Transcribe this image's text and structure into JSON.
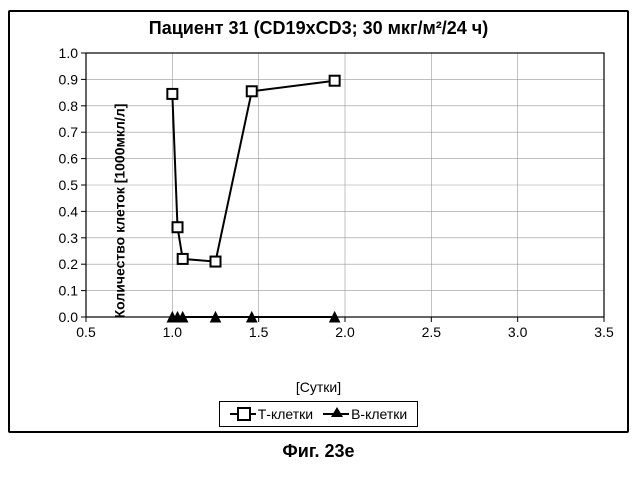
{
  "title": "Пациент 31 (CD19xCD3; 30 мкг/м²/24 ч)",
  "ylabel": "Количество клеток [1000мкл/л]",
  "xlabel": "[Сутки]",
  "caption": "Фиг. 23e",
  "chart": {
    "type": "line",
    "xlim": [
      0.5,
      3.5
    ],
    "ylim": [
      0.0,
      1.0
    ],
    "xticks": [
      0.5,
      1.0,
      1.5,
      2.0,
      2.5,
      3.0,
      3.5
    ],
    "yticks": [
      0.0,
      0.1,
      0.2,
      0.3,
      0.4,
      0.5,
      0.6,
      0.7,
      0.8,
      0.9,
      1.0
    ],
    "grid_color": "#999999",
    "axis_color": "#000000",
    "background_color": "#ffffff",
    "line_width": 2,
    "tick_fontsize": 14,
    "marker_size": 10,
    "series": [
      {
        "name": "Т-клетки",
        "marker": "square-open",
        "color": "#000000",
        "points": [
          {
            "x": 1.0,
            "y": 0.845
          },
          {
            "x": 1.03,
            "y": 0.34
          },
          {
            "x": 1.06,
            "y": 0.22
          },
          {
            "x": 1.25,
            "y": 0.21
          },
          {
            "x": 1.46,
            "y": 0.855
          },
          {
            "x": 1.94,
            "y": 0.895
          }
        ]
      },
      {
        "name": "В-клетки",
        "marker": "triangle-filled",
        "color": "#000000",
        "points": [
          {
            "x": 1.0,
            "y": 0.0
          },
          {
            "x": 1.03,
            "y": 0.0
          },
          {
            "x": 1.06,
            "y": 0.0
          },
          {
            "x": 1.25,
            "y": 0.0
          },
          {
            "x": 1.46,
            "y": 0.0
          },
          {
            "x": 1.94,
            "y": 0.0
          }
        ]
      }
    ]
  },
  "legend": {
    "items": [
      {
        "label": "Т-клетки"
      },
      {
        "label": "В-клетки"
      }
    ]
  }
}
